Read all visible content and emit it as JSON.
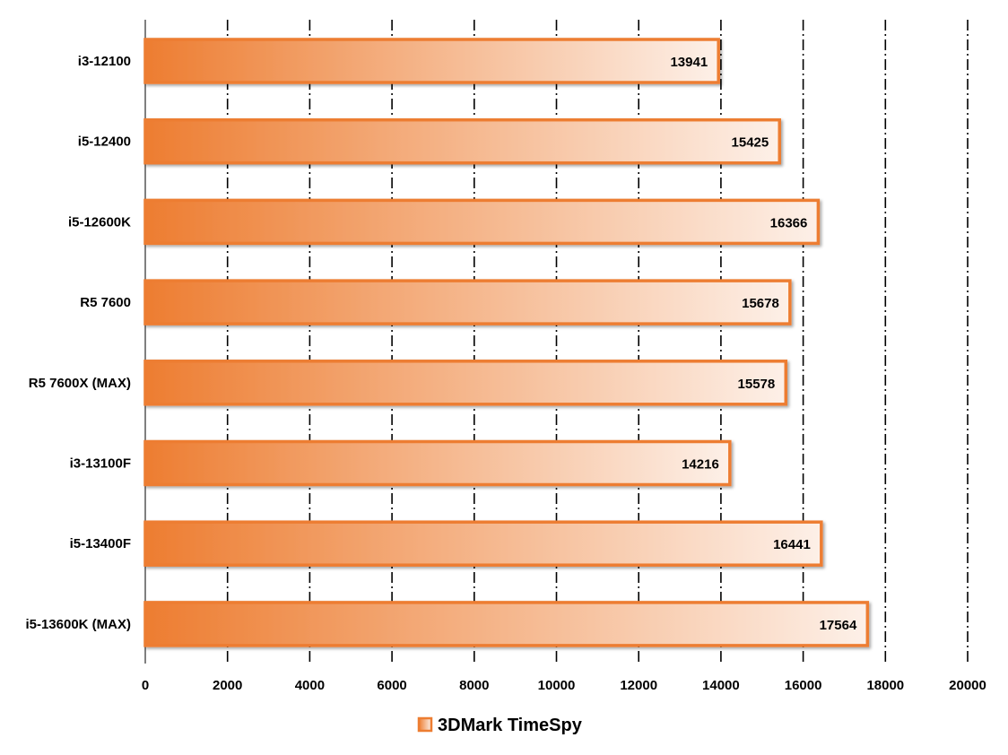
{
  "chart_data": {
    "type": "bar",
    "orientation": "horizontal",
    "categories": [
      "i3-12100",
      "i5-12400",
      "i5-12600K",
      "R5 7600",
      "R5 7600X (MAX)",
      "i3-13100F",
      "i5-13400F",
      "i5-13600K (MAX)"
    ],
    "series": [
      {
        "name": "3DMark TimeSpy",
        "values": [
          13941,
          15425,
          16366,
          15678,
          15578,
          14216,
          16441,
          17564
        ]
      }
    ],
    "xlim": [
      0,
      20000
    ],
    "xticks": [
      0,
      2000,
      4000,
      6000,
      8000,
      10000,
      12000,
      14000,
      16000,
      18000,
      20000
    ],
    "grid": true,
    "legend_position": "bottom-center",
    "data_labels": true,
    "colors": {
      "bar_start": "#ED7D31",
      "bar_end": "#FDF0E8",
      "bar_border": "#ED7D31"
    }
  }
}
